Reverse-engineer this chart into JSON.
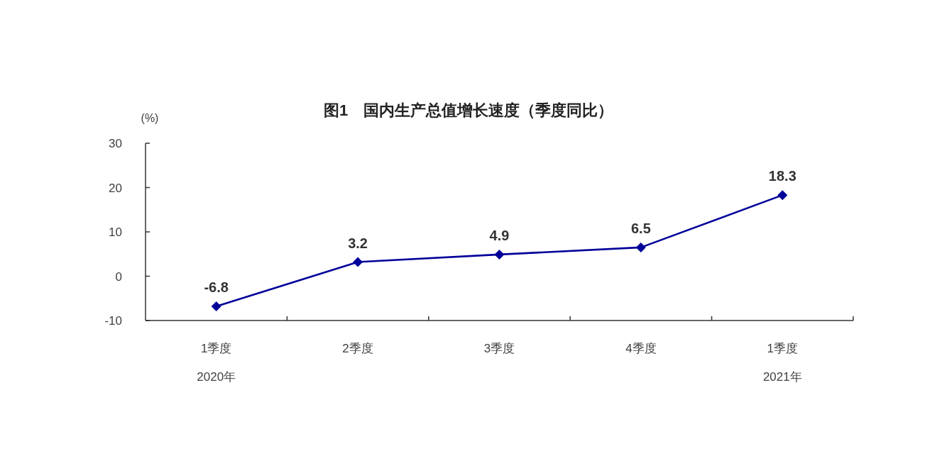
{
  "chart_data": {
    "type": "line",
    "title": "图1　国内生产总值增长速度（季度同比）",
    "ylabel": "(%)",
    "categories": [
      "1季度\n2020年",
      "2季度",
      "3季度",
      "4季度",
      "1季度\n2021年"
    ],
    "series": [
      {
        "color": "#000099",
        "values": [
          -6.8,
          3.2,
          4.9,
          6.5,
          18.3
        ]
      }
    ],
    "ylim": [
      -10,
      30
    ],
    "yticks": [
      -10,
      0,
      10,
      20,
      30
    ],
    "data_labels": true,
    "marker": "diamond",
    "line_style": "solid"
  }
}
